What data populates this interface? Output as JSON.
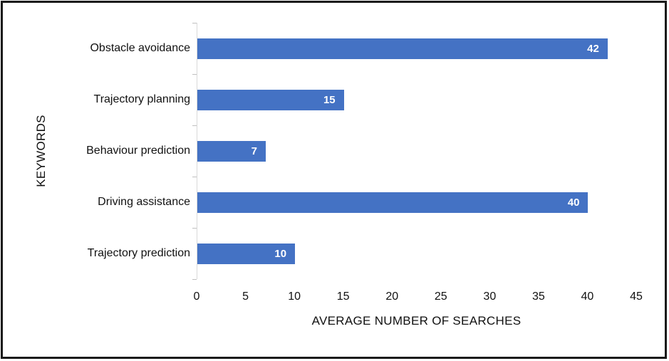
{
  "chart_data": {
    "type": "bar",
    "orientation": "horizontal",
    "categories": [
      "Obstacle avoidance",
      "Trajectory planning",
      "Behaviour prediction",
      "Driving assistance",
      "Trajectory prediction"
    ],
    "values": [
      42,
      15,
      7,
      40,
      10
    ],
    "value_labels": [
      "42",
      "15",
      "7",
      "40",
      "10"
    ],
    "title": "",
    "xlabel": "AVERAGE NUMBER OF SEARCHES",
    "ylabel": "KEYWORDS",
    "xlim": [
      0,
      45
    ],
    "xticks": [
      0,
      5,
      10,
      15,
      20,
      25,
      30,
      35,
      40,
      45
    ],
    "grid": false,
    "legend": "none",
    "value_label_position": "inside-end",
    "colors": {
      "bar": "#4472C4",
      "value_label_text": "#FFFFFF",
      "axis_line": "#D9D9D9",
      "tick_mark": "#BFBFBF",
      "text": "#111111",
      "frame_border": "#1A1A1A",
      "background": "#FFFFFF"
    }
  }
}
